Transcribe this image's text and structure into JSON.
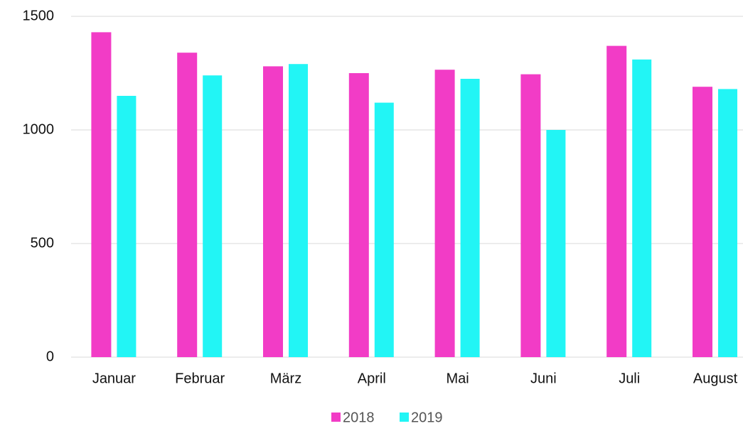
{
  "chart_data": {
    "type": "bar",
    "categories": [
      "Januar",
      "Februar",
      "März",
      "April",
      "Mai",
      "Juni",
      "Juli",
      "August"
    ],
    "series": [
      {
        "name": "2018",
        "color": "#f23cc6",
        "values": [
          1430,
          1340,
          1280,
          1250,
          1265,
          1245,
          1370,
          1190
        ]
      },
      {
        "name": "2019",
        "color": "#22f5f5",
        "values": [
          1150,
          1240,
          1290,
          1120,
          1225,
          1000,
          1310,
          1180
        ]
      }
    ],
    "ylim": [
      0,
      1500
    ],
    "yticks": [
      0,
      500,
      1000,
      1500
    ],
    "grid": true,
    "legend": "bottom"
  }
}
